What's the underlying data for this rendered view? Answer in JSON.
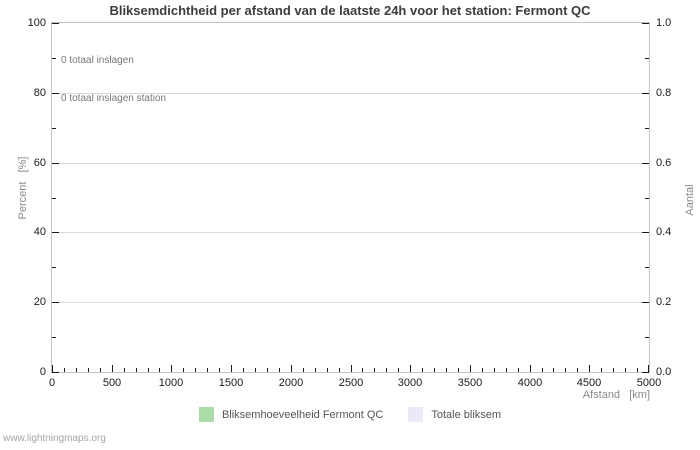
{
  "title": "Bliksemdichtheid per afstand van de laatste 24h voor het station: Fermont QC",
  "annotations": {
    "line1": "0 totaal inslagen",
    "line2": "0 totaal inslagen station"
  },
  "watermark": "www.lightningmaps.org",
  "legend": {
    "items": [
      {
        "label": "Bliksemhoeveelheid Fermont QC",
        "color": "#aaddaa"
      },
      {
        "label": "Totale bliksem",
        "color": "#e9e9f8"
      }
    ]
  },
  "chart_data": {
    "type": "bar",
    "title": "Bliksemdichtheid per afstand van de laatste 24h voor het station: Fermont QC",
    "xlabel": "Afstand   [km]",
    "ylabel_left": "Percent   [%]",
    "ylabel_right": "Aantal",
    "xlim": [
      0,
      5000
    ],
    "ylim_left": [
      0,
      100
    ],
    "ylim_right": [
      0.0,
      1.0
    ],
    "x_major_ticks": [
      0,
      500,
      1000,
      1500,
      2000,
      2500,
      3000,
      3500,
      4000,
      4500,
      5000
    ],
    "x_minor_tick_step": 100,
    "y_left_major_ticks": [
      0,
      20,
      40,
      60,
      80,
      100
    ],
    "y_left_minor_tick_step": 10,
    "y_right_major_tick_labels": [
      "0.0",
      "0.2",
      "0.4",
      "0.6",
      "0.8",
      "1.0"
    ],
    "grid": "horizontal major gridlines only, no vertical gridlines",
    "legend_position": "bottom center",
    "series": [
      {
        "name": "Bliksemhoeveelheid Fermont QC",
        "color": "#aaddaa",
        "x": [],
        "values": []
      },
      {
        "name": "Totale bliksem",
        "color": "#e9e9f8",
        "x": [],
        "values": []
      }
    ],
    "totals": {
      "totaal_inslagen": 0,
      "totaal_inslagen_station": 0
    }
  }
}
